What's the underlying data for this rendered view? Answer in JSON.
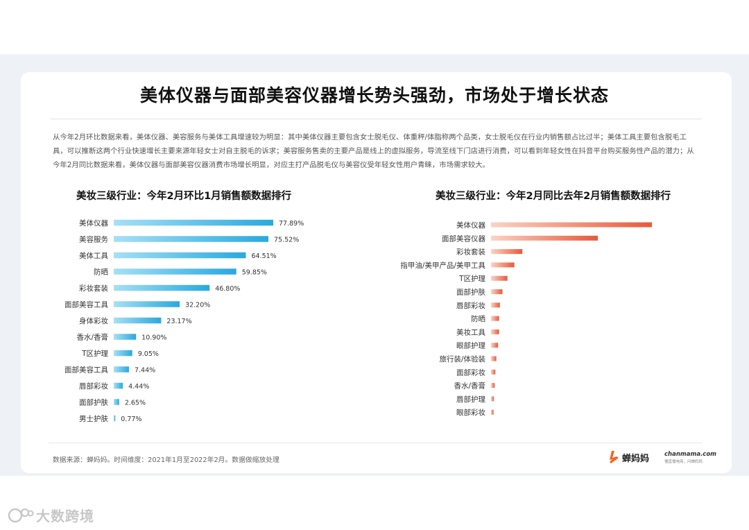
{
  "page": {
    "title": "美体仪器与面部美容仪器增长势头强劲，市场处于增长状态",
    "intro": "从今年2月环比数据来看，美体仪器、美容服务与美体工具增速较为明显：其中美体仪器主要包含女士脱毛仪、体重秤/体脂称两个品类，女士脱毛仪在行业内销售额占比过半；美体工具主要包含脱毛工具，可以推断这两个行业快速增长主要来源年轻女士对自主脱毛的诉求；美容服务售卖的主要产品是线上的虚拟服务，导流至线下门店进行消费，可以看到年轻女性在抖音平台购买服务性产品的潜力；从今年2月同比数据来看，美体仪器与面部美容仪器消费市场增长明显，对应主打产品脱毛仪与美容仪受年轻女性用户青睐，市场需求较大。",
    "source": "数据来源：蝉妈妈。时间维度：2021年1月至2022年2月。数据做缩放处理",
    "brand_name": "蝉妈妈",
    "brand_domain": "chanmama.com",
    "brand_tagline": "懂直播电商，问蝉妈妈",
    "watermark": "大数跨境"
  },
  "chart_data": [
    {
      "type": "bar",
      "orientation": "horizontal",
      "title": "美妆三级行业：今年2月环比1月销售额数据排行",
      "categories": [
        "美体仪器",
        "美容服务",
        "美体工具",
        "防晒",
        "彩妆套装",
        "面部美容工具",
        "身体彩妆",
        "香水/香膏",
        "T区护理",
        "面部美容工具",
        "唇部彩妆",
        "面部护肤",
        "男士护肤"
      ],
      "values": [
        77.89,
        75.52,
        64.51,
        59.85,
        46.8,
        32.2,
        23.17,
        10.9,
        9.05,
        7.44,
        4.44,
        2.65,
        0.77
      ],
      "labels": [
        "77.89%",
        "75.52%",
        "64.51%",
        "59.85%",
        "46.80%",
        "32.20%",
        "23.17%",
        "10.90%",
        "9.05%",
        "7.44%",
        "4.44%",
        "2.65%",
        "0.77%"
      ],
      "unit": "%",
      "colors": [
        "#2aa8de",
        "#a6e0f5"
      ]
    },
    {
      "type": "bar",
      "orientation": "horizontal",
      "title": "美妆三级行业：今年2月同比去年2月销售额数据排行",
      "categories": [
        "美体仪器",
        "面部美容仪器",
        "彩妆套装",
        "指甲油/美甲产品/美甲工具",
        "T区护理",
        "面部护肤",
        "唇部彩妆",
        "防晒",
        "美妆工具",
        "眼部护理",
        "旅行装/体验装",
        "面部彩妆",
        "香水/香膏",
        "唇部护理",
        "眼部彩妆"
      ],
      "values": [
        100,
        66.4,
        19.5,
        14.5,
        10.2,
        7.1,
        5.5,
        5.0,
        5.0,
        4.4,
        3.3,
        2.7,
        2.3,
        1.8,
        1.6
      ],
      "colors": [
        "#e8593a",
        "#fbd3c4"
      ]
    }
  ]
}
